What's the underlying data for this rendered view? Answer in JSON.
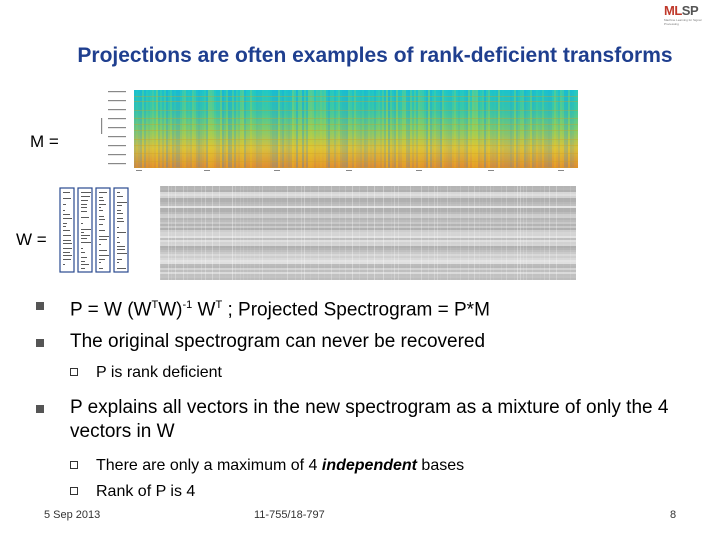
{
  "logo": {
    "text_a": "ML",
    "text_b": "SP",
    "subtitle": "Machine Learning for Signal Processing"
  },
  "title": "Projections are often examples of rank-deficient transforms",
  "labels": {
    "m": "M =",
    "w": "W ="
  },
  "bullets": [
    {
      "text_pre": "P = W (W",
      "sup1": "T",
      "text_mid": "W)",
      "sup2": "-1",
      "text_mid2": " W",
      "sup3": "T",
      "text_post": " ; Projected Spectrogram = P*M"
    },
    {
      "text": "The original spectrogram can never be recovered"
    },
    {
      "text": "P explains all vectors in the new spectrogram as a mixture of only the 4 vectors in W"
    }
  ],
  "subbullets": {
    "rank_deficient": "P is rank deficient",
    "max_prefix": "There are only a maximum of 4 ",
    "max_emph": "independent",
    "max_suffix": " bases",
    "rank4": "Rank of P is 4"
  },
  "footer": {
    "date": "5 Sep 2013",
    "course": "11-755/18-797",
    "page": "8"
  },
  "colors": {
    "title": "#1f3f8f"
  }
}
